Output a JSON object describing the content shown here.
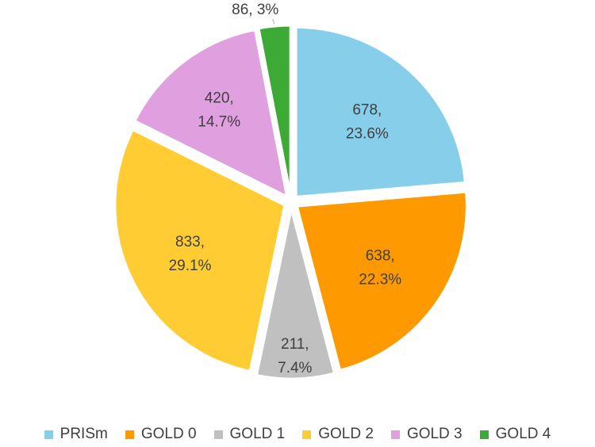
{
  "chart_data": {
    "type": "pie",
    "title": "",
    "categories": [
      "PRISm",
      "GOLD 0",
      "GOLD 1",
      "GOLD 2",
      "GOLD 3",
      "GOLD 4"
    ],
    "values": [
      678,
      638,
      211,
      833,
      420,
      86
    ],
    "data_labels": [
      [
        "678,",
        "23.6%"
      ],
      [
        "638,",
        "22.3%"
      ],
      [
        "211,",
        "7.4%"
      ],
      [
        "833,",
        "29.1%"
      ],
      [
        "420,",
        "14.7%"
      ],
      [
        "86, 3%"
      ]
    ],
    "colors": [
      "#87CEEB",
      "#FF9900",
      "#C0C0C0",
      "#FFCC33",
      "#E0A0E0",
      "#3DAA35"
    ],
    "legend_position": "bottom",
    "start_angle": "12 o'clock, clockwise",
    "exploded": true
  }
}
